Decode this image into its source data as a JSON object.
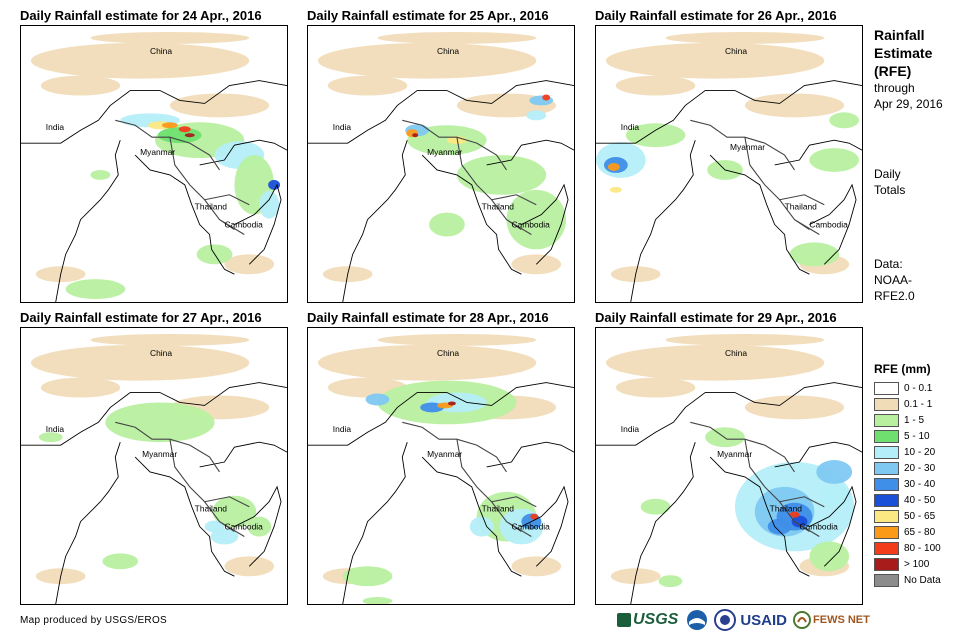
{
  "panels": [
    {
      "title": "Daily Rainfall estimate for 24 Apr., 2016"
    },
    {
      "title": "Daily Rainfall estimate for 25 Apr., 2016"
    },
    {
      "title": "Daily Rainfall estimate for 26 Apr., 2016"
    },
    {
      "title": "Daily Rainfall estimate for 27 Apr., 2016"
    },
    {
      "title": "Daily Rainfall estimate for 28 Apr., 2016"
    },
    {
      "title": "Daily Rainfall estimate for 29 Apr., 2016"
    }
  ],
  "places": {
    "china": "China",
    "india": "India",
    "myanmar": "Myanmar",
    "thailand": "Thailand",
    "cambodia": "Cambodia"
  },
  "side": {
    "title_lines": [
      "Rainfall",
      "Estimate",
      "(RFE)"
    ],
    "through": "through",
    "date": "Apr 29, 2016",
    "totals_lines": [
      "Daily",
      "Totals"
    ],
    "data_lines": [
      "Data:",
      "NOAA-",
      "RFE2.0"
    ]
  },
  "legend": {
    "title": "RFE (mm)",
    "items": [
      {
        "label": "0 - 0.1",
        "color": "#ffffff"
      },
      {
        "label": "0.1 - 1",
        "color": "#f1dcb8"
      },
      {
        "label": "1 - 5",
        "color": "#b8f0a0"
      },
      {
        "label": "5 - 10",
        "color": "#6fe06f"
      },
      {
        "label": "10 - 20",
        "color": "#b4eef8"
      },
      {
        "label": "20 - 30",
        "color": "#7ec8f2"
      },
      {
        "label": "30 - 40",
        "color": "#3f8ee8"
      },
      {
        "label": "40 - 50",
        "color": "#1a4fd8"
      },
      {
        "label": "50 - 65",
        "color": "#fce883"
      },
      {
        "label": "65 - 80",
        "color": "#fb9a19"
      },
      {
        "label": "80 - 100",
        "color": "#f23c1a"
      },
      {
        "label": "> 100",
        "color": "#a81c1c"
      },
      {
        "label": "No Data",
        "color": "#8c8c8c"
      }
    ]
  },
  "credit": "Map produced by USGS/EROS",
  "logos": {
    "usgs": "USGS",
    "usaid": "USAID",
    "fewsnet": "FEWS NET"
  }
}
